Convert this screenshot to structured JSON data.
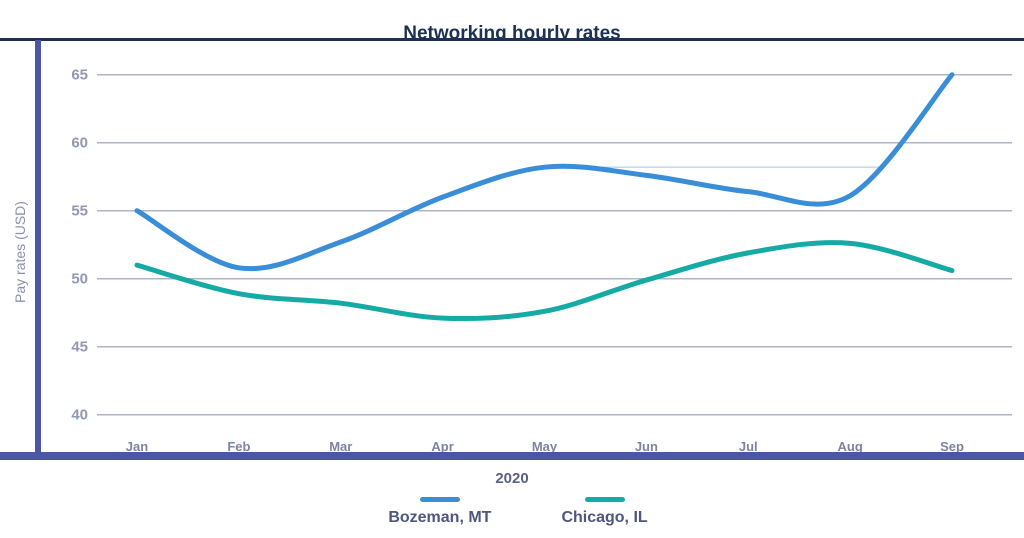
{
  "title": "Networking hourly rates",
  "y_axis": {
    "label": "Pay rates (USD)",
    "ticks": [
      65,
      60,
      55,
      50,
      45,
      40
    ]
  },
  "x_axis": {
    "label": "2020",
    "ticks": [
      "Jan",
      "Feb",
      "Mar",
      "Apr",
      "May",
      "Jun",
      "Jul",
      "Aug",
      "Sep"
    ]
  },
  "legend": [
    {
      "label": "Bozeman, MT",
      "color": "#3a8ed8"
    },
    {
      "label": "Chicago, IL",
      "color": "#16aaa4"
    }
  ],
  "colors": {
    "title_navy": "#1e3154",
    "axis_indigo": "#4b57a5",
    "gridline": "#b0b4c6",
    "y_tick_label": "#9298b5",
    "x_tick_label": "#7d84a3",
    "series_blue": "#3a8ed8",
    "series_teal": "#16aaa4",
    "ghost_line": "rgba(58,142,216,0.5)"
  },
  "ghost_line": {
    "value": 58.2,
    "from_month_index": 4.25,
    "to_month_index": 7.3
  },
  "chart_data": {
    "type": "line",
    "title": "Networking hourly rates",
    "xlabel": "2020",
    "ylabel": "Pay rates (USD)",
    "x": [
      "Jan",
      "Feb",
      "Mar",
      "Apr",
      "May",
      "Jun",
      "Jul",
      "Aug",
      "Sep"
    ],
    "series": [
      {
        "name": "Bozeman, MT",
        "color": "#3a8ed8",
        "values": [
          55,
          50.8,
          52.7,
          56.0,
          58.2,
          57.6,
          56.4,
          56.1,
          65
        ]
      },
      {
        "name": "Chicago, IL",
        "color": "#16aaa4",
        "values": [
          51,
          48.9,
          48.2,
          47.1,
          47.6,
          49.9,
          51.9,
          52.6,
          50.6
        ]
      }
    ],
    "ylim": [
      38.5,
      67.5
    ],
    "y_ticks": [
      40,
      45,
      50,
      55,
      60,
      65
    ],
    "grid": true,
    "smooth": true,
    "legend_position": "bottom"
  }
}
